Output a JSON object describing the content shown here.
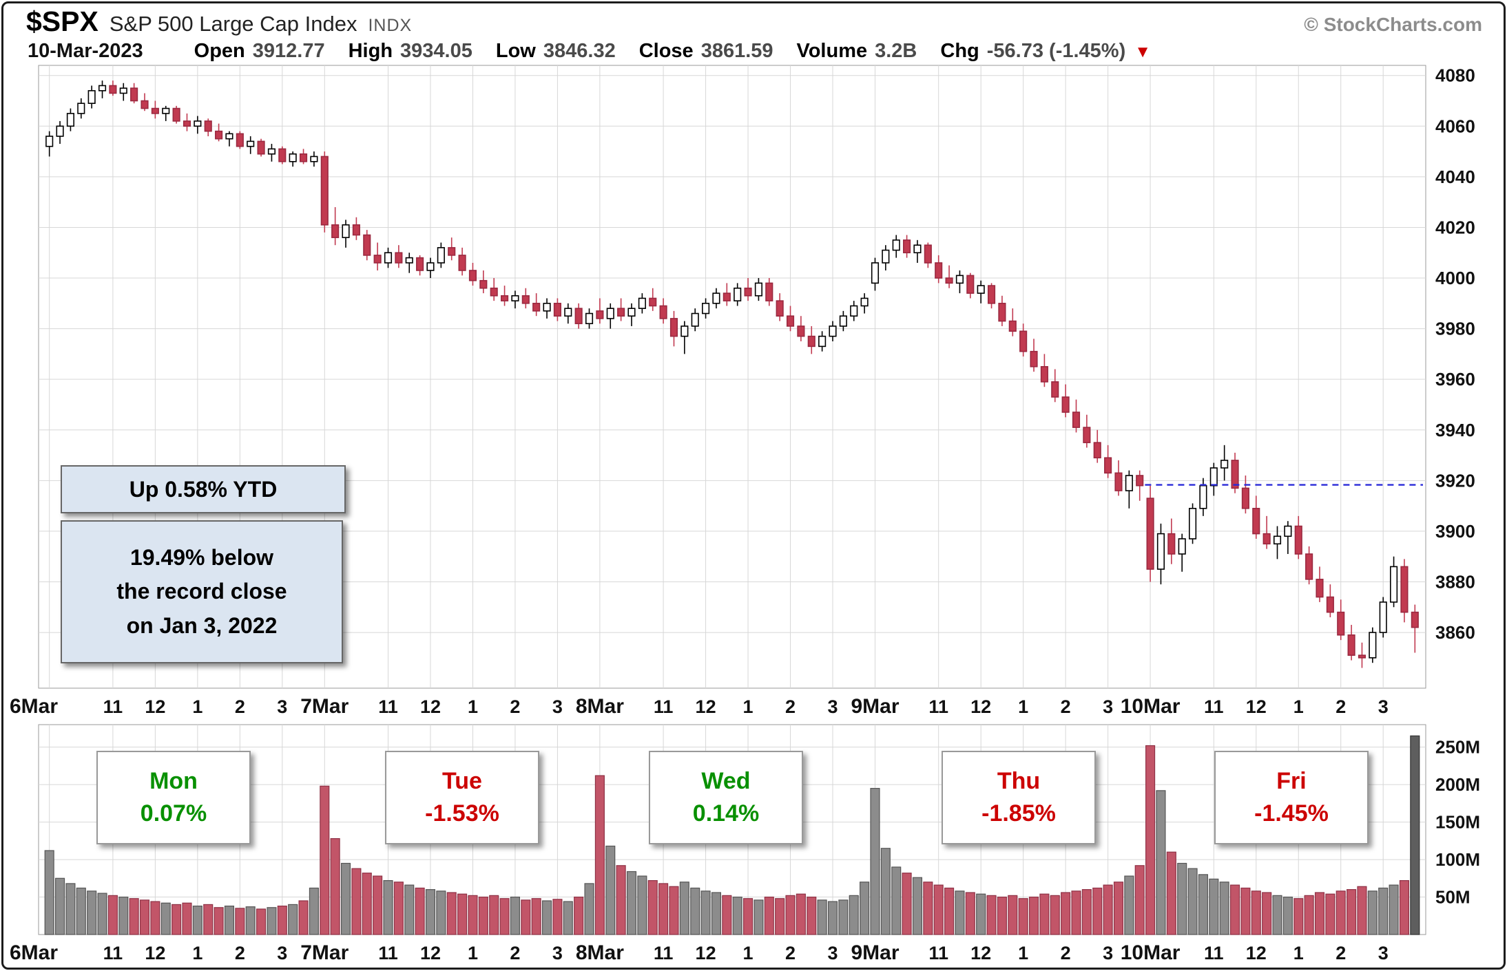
{
  "header": {
    "symbol": "$SPX",
    "name": "S&P 500 Large Cap Index",
    "exchange": "INDX",
    "copyright": "© StockCharts.com"
  },
  "quote": {
    "date": "10-Mar-2023",
    "open_label": "Open",
    "open": "3912.77",
    "high_label": "High",
    "high": "3934.05",
    "low_label": "Low",
    "low": "3846.32",
    "close_label": "Close",
    "close": "3861.59",
    "volume_label": "Volume",
    "volume": "3.2B",
    "chg_label": "Chg",
    "chg": "-56.73 (-1.45%)",
    "triangle": "▼"
  },
  "annotations": {
    "ytd": "Up 0.58% YTD",
    "below_lines": [
      "19.49% below",
      "the record close",
      "on Jan 3, 2022"
    ]
  },
  "chart_data": {
    "type": "candlestick+volume",
    "title": "$SPX S&P 500 Large Cap Index INDX",
    "period": "15-minute intraday, 6-Mar-2023 to 10-Mar-2023",
    "price_axis": {
      "min": 3838,
      "max": 4084,
      "ticks": [
        4080,
        4060,
        4040,
        4020,
        4000,
        3980,
        3960,
        3940,
        3920,
        3900,
        3880,
        3860
      ]
    },
    "volume_axis": {
      "max": 280,
      "unit": "millions",
      "ticks": [
        {
          "v": 250,
          "label": "250M"
        },
        {
          "v": 200,
          "label": "200M"
        },
        {
          "v": 150,
          "label": "150M"
        },
        {
          "v": 100,
          "label": "100M"
        },
        {
          "v": 50,
          "label": "50M"
        }
      ]
    },
    "x_ticks": [
      {
        "i": 0,
        "l": "6Mar",
        "d": true
      },
      {
        "i": 6,
        "l": "11"
      },
      {
        "i": 10,
        "l": "12"
      },
      {
        "i": 14,
        "l": "1"
      },
      {
        "i": 18,
        "l": "2"
      },
      {
        "i": 22,
        "l": "3"
      },
      {
        "i": 26,
        "l": "7Mar",
        "d": true
      },
      {
        "i": 32,
        "l": "11"
      },
      {
        "i": 36,
        "l": "12"
      },
      {
        "i": 40,
        "l": "1"
      },
      {
        "i": 44,
        "l": "2"
      },
      {
        "i": 48,
        "l": "3"
      },
      {
        "i": 52,
        "l": "8Mar",
        "d": true
      },
      {
        "i": 58,
        "l": "11"
      },
      {
        "i": 62,
        "l": "12"
      },
      {
        "i": 66,
        "l": "1"
      },
      {
        "i": 70,
        "l": "2"
      },
      {
        "i": 74,
        "l": "3"
      },
      {
        "i": 78,
        "l": "9Mar",
        "d": true
      },
      {
        "i": 84,
        "l": "11"
      },
      {
        "i": 88,
        "l": "12"
      },
      {
        "i": 92,
        "l": "1"
      },
      {
        "i": 96,
        "l": "2"
      },
      {
        "i": 100,
        "l": "3"
      },
      {
        "i": 104,
        "l": "10Mar",
        "d": true
      },
      {
        "i": 110,
        "l": "11"
      },
      {
        "i": 114,
        "l": "12"
      },
      {
        "i": 118,
        "l": "1"
      },
      {
        "i": 122,
        "l": "2"
      },
      {
        "i": 126,
        "l": "3"
      }
    ],
    "dashed_line": {
      "price": 3918.32,
      "from_index": 103.5,
      "color": "#2929d8"
    },
    "day_summaries": [
      {
        "label": "Mon",
        "pct": "0.07%",
        "direction": "up"
      },
      {
        "label": "Tue",
        "pct": "-1.53%",
        "direction": "down"
      },
      {
        "label": "Wed",
        "pct": "0.14%",
        "direction": "up"
      },
      {
        "label": "Thu",
        "pct": "-1.85%",
        "direction": "down"
      },
      {
        "label": "Fri",
        "pct": "-1.45%",
        "direction": "down"
      }
    ],
    "colors": {
      "down_fill": "#c13a50",
      "down_stroke": "#9b2940",
      "down_wick": "#c13a50",
      "vol_up": "#8c8c8c",
      "vol_up_stroke": "#555555",
      "vol_down": "#c25568",
      "vol_down_stroke": "#8e3145",
      "grid": "#d7d7d7",
      "panel_border": "#9a9a9a"
    },
    "volume_overrides": {
      "129": "#5e5e5e"
    },
    "candles": [
      [
        4052,
        4058,
        4048,
        4056,
        112
      ],
      [
        4056,
        4062,
        4053,
        4060,
        75
      ],
      [
        4060,
        4067,
        4058,
        4065,
        68
      ],
      [
        4065,
        4071,
        4063,
        4069,
        62
      ],
      [
        4069,
        4076,
        4067,
        4074,
        58
      ],
      [
        4074,
        4078,
        4071,
        4076,
        55
      ],
      [
        4076,
        4078,
        4072,
        4073,
        52
      ],
      [
        4073,
        4077,
        4070,
        4075,
        50
      ],
      [
        4075,
        4077,
        4069,
        4070,
        48
      ],
      [
        4070,
        4073,
        4066,
        4067,
        46
      ],
      [
        4067,
        4070,
        4063,
        4065,
        44
      ],
      [
        4065,
        4068,
        4062,
        4067,
        42
      ],
      [
        4067,
        4068,
        4061,
        4062,
        40
      ],
      [
        4062,
        4065,
        4058,
        4060,
        42
      ],
      [
        4060,
        4064,
        4057,
        4062,
        38
      ],
      [
        4062,
        4063,
        4056,
        4058,
        40
      ],
      [
        4058,
        4061,
        4054,
        4055,
        36
      ],
      [
        4055,
        4058,
        4052,
        4057,
        38
      ],
      [
        4057,
        4058,
        4051,
        4052,
        35
      ],
      [
        4052,
        4056,
        4049,
        4054,
        37
      ],
      [
        4054,
        4055,
        4048,
        4049,
        34
      ],
      [
        4049,
        4053,
        4046,
        4051,
        36
      ],
      [
        4051,
        4052,
        4045,
        4046,
        38
      ],
      [
        4046,
        4050,
        4044,
        4049,
        40
      ],
      [
        4049,
        4051,
        4045,
        4046,
        45
      ],
      [
        4046,
        4050,
        4044,
        4048,
        62
      ],
      [
        4048,
        4050,
        4018,
        4021,
        198
      ],
      [
        4021,
        4028,
        4013,
        4016,
        128
      ],
      [
        4016,
        4023,
        4012,
        4021,
        95
      ],
      [
        4021,
        4024,
        4015,
        4017,
        88
      ],
      [
        4017,
        4019,
        4007,
        4009,
        82
      ],
      [
        4009,
        4014,
        4003,
        4006,
        78
      ],
      [
        4006,
        4012,
        4004,
        4010,
        72
      ],
      [
        4010,
        4013,
        4004,
        4006,
        70
      ],
      [
        4006,
        4010,
        4002,
        4008,
        66
      ],
      [
        4008,
        4009,
        4001,
        4003,
        62
      ],
      [
        4003,
        4008,
        4000,
        4006,
        60
      ],
      [
        4006,
        4014,
        4004,
        4012,
        58
      ],
      [
        4012,
        4016,
        4007,
        4009,
        56
      ],
      [
        4009,
        4012,
        4001,
        4003,
        54
      ],
      [
        4003,
        4006,
        3997,
        3999,
        52
      ],
      [
        3999,
        4003,
        3994,
        3996,
        50
      ],
      [
        3996,
        4000,
        3991,
        3993,
        52
      ],
      [
        3993,
        3997,
        3989,
        3991,
        48
      ],
      [
        3991,
        3995,
        3988,
        3993,
        50
      ],
      [
        3993,
        3996,
        3988,
        3990,
        46
      ],
      [
        3990,
        3994,
        3985,
        3987,
        48
      ],
      [
        3987,
        3992,
        3984,
        3990,
        45
      ],
      [
        3990,
        3992,
        3983,
        3985,
        47
      ],
      [
        3985,
        3990,
        3982,
        3988,
        44
      ],
      [
        3988,
        3990,
        3980,
        3982,
        50
      ],
      [
        3982,
        3988,
        3980,
        3986,
        68
      ],
      [
        3987,
        3992,
        3982,
        3984,
        212
      ],
      [
        3984,
        3990,
        3980,
        3988,
        118
      ],
      [
        3988,
        3992,
        3983,
        3985,
        92
      ],
      [
        3985,
        3990,
        3981,
        3988,
        84
      ],
      [
        3988,
        3994,
        3986,
        3992,
        78
      ],
      [
        3992,
        3996,
        3987,
        3989,
        72
      ],
      [
        3989,
        3992,
        3982,
        3984,
        68
      ],
      [
        3984,
        3987,
        3973,
        3977,
        64
      ],
      [
        3977,
        3983,
        3970,
        3981,
        70
      ],
      [
        3981,
        3988,
        3979,
        3986,
        62
      ],
      [
        3986,
        3992,
        3984,
        3990,
        58
      ],
      [
        3990,
        3996,
        3988,
        3994,
        56
      ],
      [
        3994,
        3998,
        3989,
        3991,
        52
      ],
      [
        3991,
        3998,
        3989,
        3996,
        50
      ],
      [
        3996,
        4000,
        3991,
        3993,
        48
      ],
      [
        3993,
        4000,
        3991,
        3998,
        46
      ],
      [
        3998,
        4000,
        3989,
        3991,
        50
      ],
      [
        3991,
        3994,
        3983,
        3985,
        48
      ],
      [
        3985,
        3989,
        3979,
        3981,
        52
      ],
      [
        3981,
        3985,
        3975,
        3977,
        54
      ],
      [
        3977,
        3981,
        3970,
        3973,
        50
      ],
      [
        3973,
        3979,
        3971,
        3977,
        46
      ],
      [
        3977,
        3983,
        3975,
        3981,
        44
      ],
      [
        3981,
        3987,
        3979,
        3985,
        46
      ],
      [
        3985,
        3991,
        3983,
        3989,
        52
      ],
      [
        3989,
        3994,
        3986,
        3992,
        70
      ],
      [
        3998,
        4008,
        3995,
        4006,
        195
      ],
      [
        4006,
        4013,
        4003,
        4011,
        115
      ],
      [
        4011,
        4017,
        4008,
        4015,
        90
      ],
      [
        4015,
        4017,
        4008,
        4010,
        82
      ],
      [
        4010,
        4015,
        4006,
        4013,
        76
      ],
      [
        4013,
        4014,
        4004,
        4006,
        70
      ],
      [
        4006,
        4009,
        3998,
        4000,
        66
      ],
      [
        4000,
        4005,
        3996,
        3998,
        62
      ],
      [
        3998,
        4003,
        3994,
        4001,
        58
      ],
      [
        4001,
        4002,
        3992,
        3994,
        56
      ],
      [
        3994,
        3999,
        3990,
        3997,
        54
      ],
      [
        3997,
        3998,
        3988,
        3990,
        52
      ],
      [
        3990,
        3993,
        3981,
        3983,
        50
      ],
      [
        3983,
        3988,
        3977,
        3979,
        52
      ],
      [
        3979,
        3982,
        3969,
        3971,
        48
      ],
      [
        3971,
        3976,
        3963,
        3965,
        50
      ],
      [
        3965,
        3970,
        3957,
        3959,
        54
      ],
      [
        3959,
        3964,
        3951,
        3953,
        52
      ],
      [
        3953,
        3958,
        3945,
        3947,
        56
      ],
      [
        3947,
        3952,
        3939,
        3941,
        58
      ],
      [
        3941,
        3946,
        3933,
        3935,
        60
      ],
      [
        3935,
        3940,
        3927,
        3929,
        62
      ],
      [
        3929,
        3934,
        3921,
        3923,
        66
      ],
      [
        3923,
        3928,
        3914,
        3916,
        70
      ],
      [
        3916,
        3924,
        3909,
        3922,
        78
      ],
      [
        3922,
        3924,
        3912,
        3918,
        92
      ],
      [
        3913,
        3918,
        3880,
        3885,
        252
      ],
      [
        3885,
        3903,
        3879,
        3899,
        192
      ],
      [
        3899,
        3905,
        3887,
        3891,
        110
      ],
      [
        3891,
        3899,
        3884,
        3897,
        95
      ],
      [
        3897,
        3911,
        3895,
        3909,
        88
      ],
      [
        3909,
        3921,
        3906,
        3918,
        80
      ],
      [
        3918,
        3927,
        3914,
        3925,
        74
      ],
      [
        3925,
        3934,
        3920,
        3928,
        70
      ],
      [
        3928,
        3931,
        3915,
        3917,
        66
      ],
      [
        3917,
        3922,
        3907,
        3909,
        62
      ],
      [
        3909,
        3914,
        3897,
        3899,
        58
      ],
      [
        3899,
        3906,
        3893,
        3895,
        56
      ],
      [
        3895,
        3902,
        3889,
        3898,
        52
      ],
      [
        3898,
        3904,
        3891,
        3902,
        50
      ],
      [
        3902,
        3906,
        3889,
        3891,
        48
      ],
      [
        3891,
        3894,
        3879,
        3881,
        52
      ],
      [
        3881,
        3886,
        3872,
        3874,
        56
      ],
      [
        3874,
        3879,
        3866,
        3868,
        54
      ],
      [
        3868,
        3873,
        3857,
        3859,
        58
      ],
      [
        3859,
        3863,
        3849,
        3851,
        60
      ],
      [
        3851,
        3856,
        3846,
        3850,
        64
      ],
      [
        3850,
        3862,
        3848,
        3860,
        58
      ],
      [
        3860,
        3874,
        3858,
        3872,
        62
      ],
      [
        3872,
        3890,
        3870,
        3886,
        66
      ],
      [
        3886,
        3889,
        3864,
        3868,
        72
      ],
      [
        3868,
        3871,
        3852,
        3862,
        265
      ]
    ]
  }
}
